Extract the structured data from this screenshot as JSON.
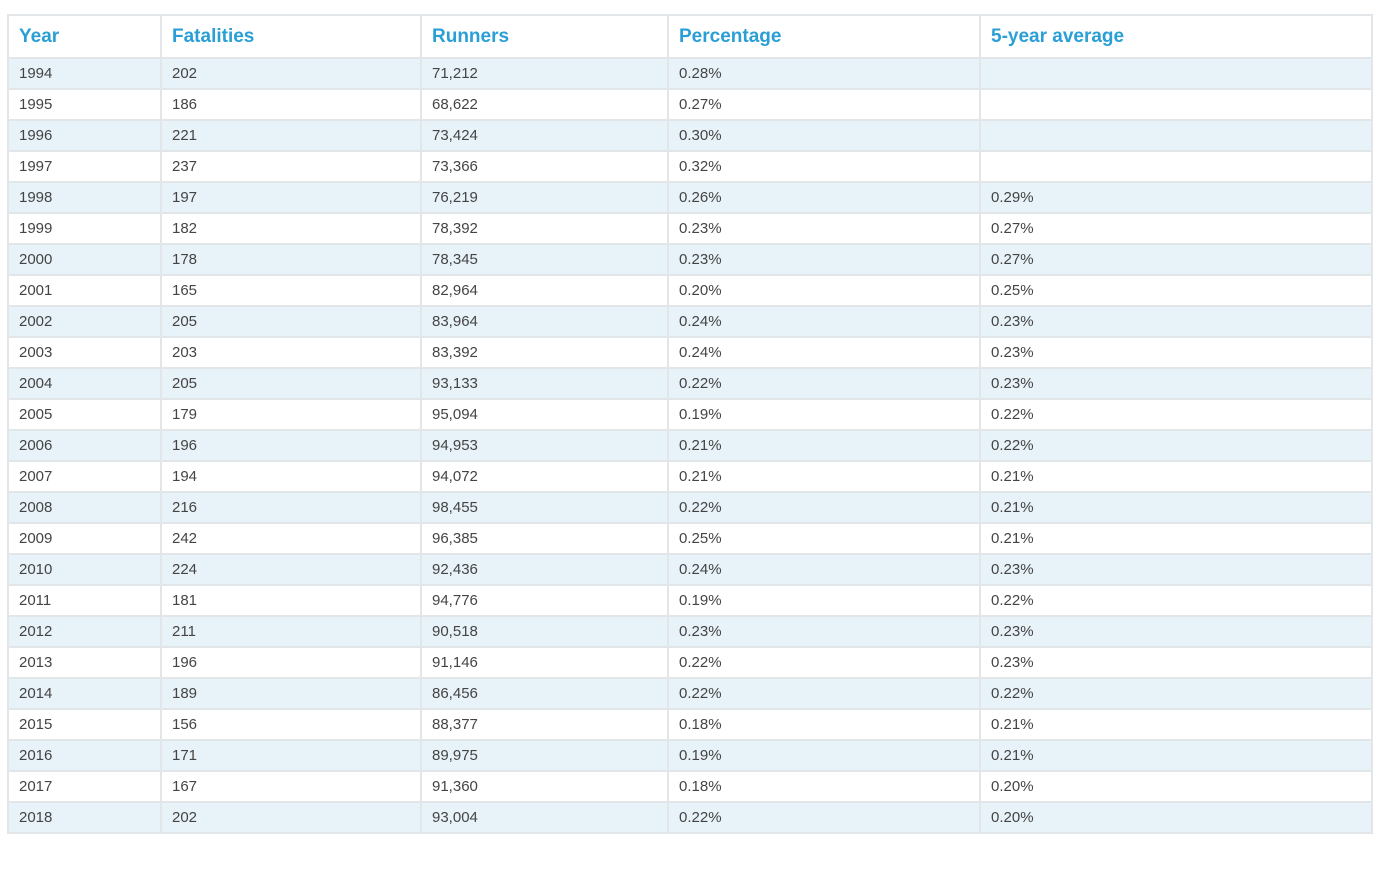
{
  "columns": [
    "Year",
    "Fatalities",
    "Runners",
    "Percentage",
    "5-year average"
  ],
  "rows": [
    [
      "1994",
      "202",
      "71,212",
      "0.28%",
      ""
    ],
    [
      "1995",
      "186",
      "68,622",
      "0.27%",
      ""
    ],
    [
      "1996",
      "221",
      "73,424",
      "0.30%",
      ""
    ],
    [
      "1997",
      "237",
      "73,366",
      "0.32%",
      ""
    ],
    [
      "1998",
      "197",
      "76,219",
      "0.26%",
      "0.29%"
    ],
    [
      "1999",
      "182",
      "78,392",
      "0.23%",
      "0.27%"
    ],
    [
      "2000",
      "178",
      "78,345",
      "0.23%",
      "0.27%"
    ],
    [
      "2001",
      "165",
      "82,964",
      "0.20%",
      "0.25%"
    ],
    [
      "2002",
      "205",
      "83,964",
      "0.24%",
      "0.23%"
    ],
    [
      "2003",
      "203",
      "83,392",
      "0.24%",
      "0.23%"
    ],
    [
      "2004",
      "205",
      "93,133",
      "0.22%",
      "0.23%"
    ],
    [
      "2005",
      "179",
      "95,094",
      "0.19%",
      "0.22%"
    ],
    [
      "2006",
      "196",
      "94,953",
      "0.21%",
      "0.22%"
    ],
    [
      "2007",
      "194",
      "94,072",
      "0.21%",
      "0.21%"
    ],
    [
      "2008",
      "216",
      "98,455",
      "0.22%",
      "0.21%"
    ],
    [
      "2009",
      "242",
      "96,385",
      "0.25%",
      "0.21%"
    ],
    [
      "2010",
      "224",
      "92,436",
      "0.24%",
      "0.23%"
    ],
    [
      "2011",
      "181",
      "94,776",
      "0.19%",
      "0.22%"
    ],
    [
      "2012",
      "211",
      "90,518",
      "0.23%",
      "0.23%"
    ],
    [
      "2013",
      "196",
      "91,146",
      "0.22%",
      "0.23%"
    ],
    [
      "2014",
      "189",
      "86,456",
      "0.22%",
      "0.22%"
    ],
    [
      "2015",
      "156",
      "88,377",
      "0.18%",
      "0.21%"
    ],
    [
      "2016",
      "171",
      "89,975",
      "0.19%",
      "0.21%"
    ],
    [
      "2017",
      "167",
      "91,360",
      "0.18%",
      "0.20%"
    ],
    [
      "2018",
      "202",
      "93,004",
      "0.22%",
      "0.20%"
    ]
  ],
  "colors": {
    "header_text": "#2a9fd6",
    "body_text": "#444444",
    "stripe": "#e8f2f9",
    "border": "#e3e6e8"
  }
}
